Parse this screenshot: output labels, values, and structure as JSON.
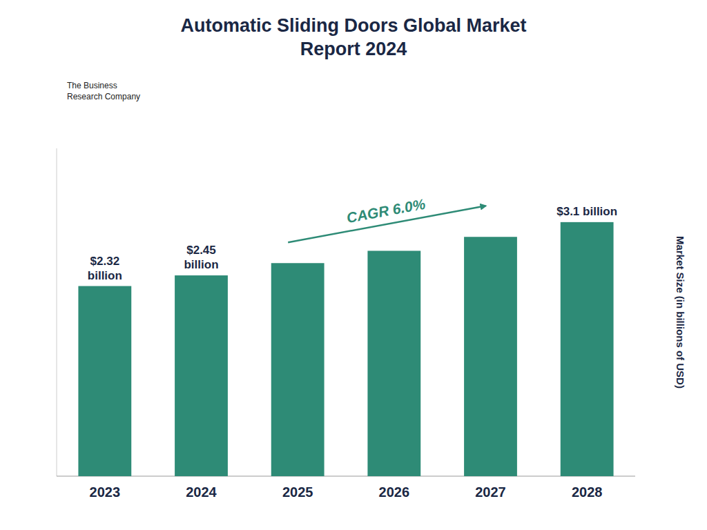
{
  "chart_data": {
    "type": "bar",
    "title": "Automatic Sliding Doors Global Market\nReport 2024",
    "y_label": "Market Size (in billions of USD)",
    "categories": [
      "2023",
      "2024",
      "2025",
      "2026",
      "2027",
      "2028"
    ],
    "values": [
      2.32,
      2.45,
      2.6,
      2.75,
      2.92,
      3.1
    ],
    "value_labels": [
      "$2.32\nbillion",
      "$2.45\nbillion",
      null,
      null,
      null,
      "$3.1 billion"
    ],
    "data_labels": true,
    "color": "#2e8b76",
    "ylim": [
      0,
      4.0
    ],
    "grid": false,
    "tick_labels": "x",
    "annotations": [
      "CAGR  6.0%",
      "The Business\nResearch Company"
    ]
  }
}
